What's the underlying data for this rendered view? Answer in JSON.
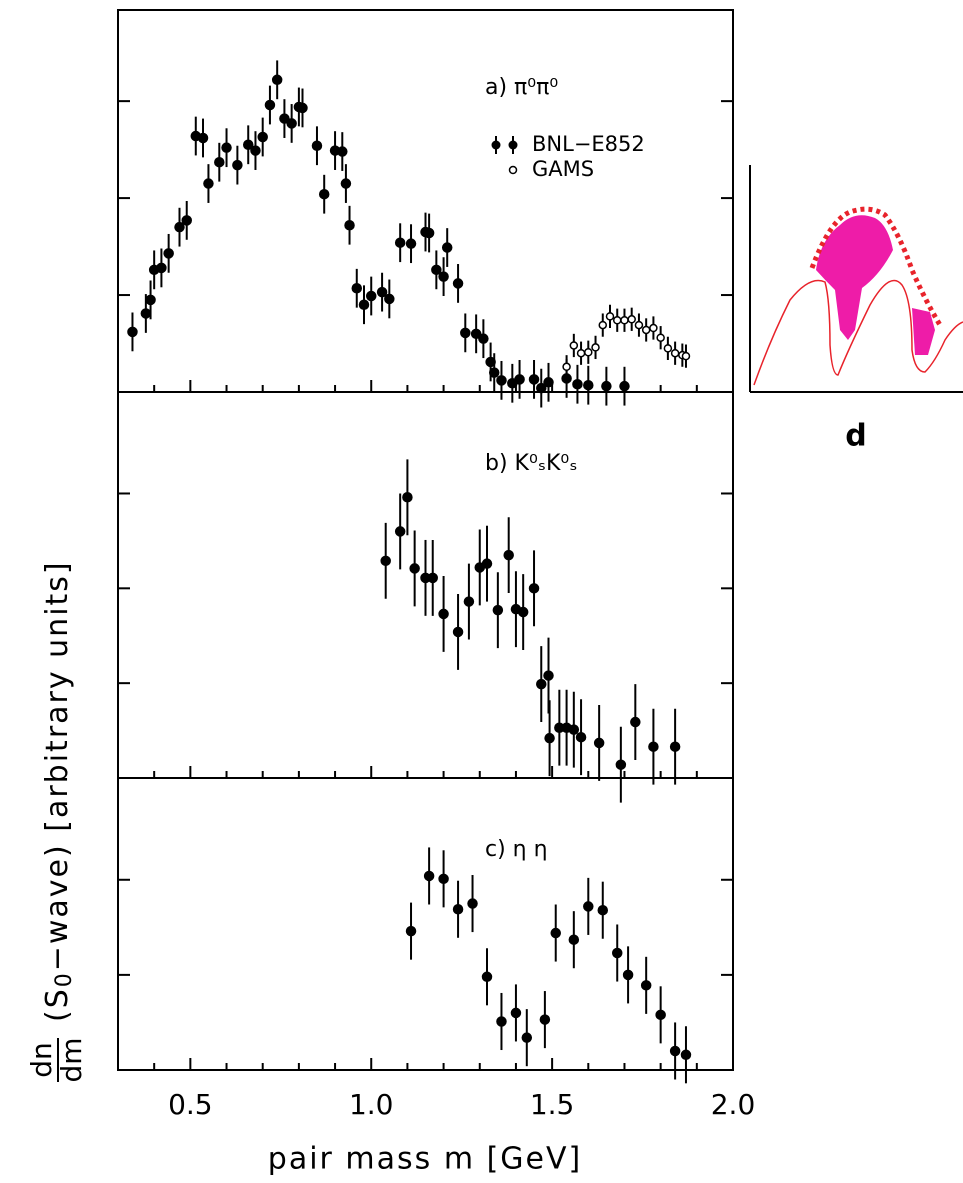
{
  "ylabel": {
    "num": "dn",
    "den": "dm",
    "open": "(S",
    "sub": "0",
    "rest": "−wave)  [arbitrary units]"
  },
  "xlabel": "pair mass  m  [GeV]",
  "inset": {
    "label": "d"
  },
  "chart_data": [
    {
      "type": "scatter",
      "title": "a)  π⁰π⁰",
      "xlim": [
        0.3,
        2.0
      ],
      "ylim": [
        0,
        3.94
      ],
      "yticks": [
        1,
        2,
        3
      ],
      "xticks": [
        0.5,
        {
          "value": 1,
          "label": "1.0"
        },
        1.5,
        {
          "value": 2,
          "label": "2.0"
        }
      ],
      "xminor": [
        0.4,
        0.6,
        0.7,
        0.8,
        0.9,
        1.1,
        1.2,
        1.3,
        1.4,
        1.6,
        1.7,
        1.8,
        1.9
      ],
      "series": [
        {
          "name": "BNL−E852",
          "color": "#000000",
          "marker": "filled",
          "error": 0.2,
          "x": [
            0.34,
            0.377,
            0.39,
            0.4,
            0.42,
            0.44,
            0.47,
            0.49,
            0.515,
            0.535,
            0.55,
            0.58,
            0.6,
            0.63,
            0.66,
            0.68,
            0.7,
            0.72,
            0.74,
            0.76,
            0.78,
            0.8,
            0.81,
            0.85,
            0.87,
            0.9,
            0.92,
            0.93,
            0.94,
            0.96,
            0.98,
            1.0,
            1.03,
            1.05,
            1.08,
            1.11,
            1.15,
            1.16,
            1.18,
            1.2,
            1.21,
            1.24,
            1.26,
            1.29,
            1.31,
            1.33,
            1.34,
            1.36,
            1.39,
            1.41,
            1.45,
            1.47,
            1.49,
            1.54,
            1.57,
            1.6,
            1.65,
            1.7
          ],
          "values": [
            0.62,
            0.81,
            0.95,
            1.26,
            1.28,
            1.43,
            1.7,
            1.77,
            2.64,
            2.62,
            2.15,
            2.37,
            2.52,
            2.34,
            2.55,
            2.49,
            2.63,
            2.96,
            3.22,
            2.82,
            2.77,
            2.94,
            2.93,
            2.54,
            2.04,
            2.49,
            2.48,
            2.15,
            1.72,
            1.07,
            0.9,
            0.99,
            1.03,
            0.96,
            1.54,
            1.53,
            1.65,
            1.64,
            1.26,
            1.19,
            1.49,
            1.12,
            0.61,
            0.6,
            0.55,
            0.31,
            0.2,
            0.12,
            0.09,
            0.13,
            0.13,
            0.04,
            0.1,
            0.14,
            0.08,
            0.07,
            0.06,
            0.06
          ]
        },
        {
          "name": "GAMS",
          "color": "#000000",
          "marker": "open",
          "error": 0.12,
          "x": [
            1.54,
            1.56,
            1.58,
            1.6,
            1.62,
            1.64,
            1.66,
            1.68,
            1.7,
            1.72,
            1.74,
            1.76,
            1.78,
            1.8,
            1.82,
            1.84,
            1.86,
            1.87
          ],
          "values": [
            0.26,
            0.48,
            0.4,
            0.41,
            0.46,
            0.69,
            0.78,
            0.74,
            0.74,
            0.75,
            0.69,
            0.64,
            0.66,
            0.56,
            0.45,
            0.4,
            0.38,
            0.37
          ]
        }
      ]
    },
    {
      "type": "scatter",
      "title": "b)  K⁰ₛK⁰ₛ",
      "xlim": [
        0.3,
        2.0
      ],
      "ylim": [
        0,
        4.07
      ],
      "yticks": [
        1,
        2,
        3
      ],
      "xticks": [
        0.5,
        {
          "value": 1,
          "label": "1.0"
        },
        1.5,
        {
          "value": 2,
          "label": "2.0"
        }
      ],
      "xminor": [
        0.4,
        0.6,
        0.7,
        0.8,
        0.9,
        1.1,
        1.2,
        1.3,
        1.4,
        1.6,
        1.7,
        1.8,
        1.9
      ],
      "series": [
        {
          "color": "#000000",
          "marker": "filled",
          "error": 0.4,
          "x": [
            1.04,
            1.08,
            1.1,
            1.12,
            1.15,
            1.17,
            1.2,
            1.24,
            1.27,
            1.3,
            1.32,
            1.35,
            1.38,
            1.4,
            1.42,
            1.45,
            1.47,
            1.49,
            1.493,
            1.52,
            1.54,
            1.56,
            1.58,
            1.63,
            1.69,
            1.73,
            1.78,
            1.84
          ],
          "values": [
            2.29,
            2.6,
            2.96,
            2.21,
            2.11,
            2.11,
            1.73,
            1.54,
            1.86,
            2.22,
            2.26,
            1.77,
            2.35,
            1.78,
            1.75,
            2.0,
            0.99,
            1.08,
            0.42,
            0.53,
            0.53,
            0.51,
            0.43,
            0.37,
            0.14,
            0.59,
            0.33,
            0.33
          ]
        }
      ]
    },
    {
      "type": "scatter",
      "title": "c)  η η",
      "xlim": [
        0.3,
        2.0
      ],
      "ylim": [
        0,
        3.07
      ],
      "yticks": [
        1,
        2
      ],
      "xticks": [
        0.5,
        {
          "value": 1,
          "label": "1.0"
        },
        1.5,
        {
          "value": 2,
          "label": "2.0"
        }
      ],
      "xminor": [
        0.4,
        0.6,
        0.7,
        0.8,
        0.9,
        1.1,
        1.2,
        1.3,
        1.4,
        1.6,
        1.7,
        1.8,
        1.9
      ],
      "series": [
        {
          "color": "#000000",
          "marker": "filled",
          "error": 0.3,
          "x": [
            1.11,
            1.16,
            1.2,
            1.24,
            1.28,
            1.32,
            1.36,
            1.4,
            1.43,
            1.48,
            1.51,
            1.56,
            1.6,
            1.64,
            1.68,
            1.71,
            1.76,
            1.8,
            1.84,
            1.87
          ],
          "values": [
            1.46,
            2.04,
            2.01,
            1.69,
            1.75,
            0.98,
            0.51,
            0.6,
            0.34,
            0.53,
            1.44,
            1.37,
            1.72,
            1.68,
            1.23,
            1.0,
            0.89,
            0.58,
            0.2,
            0.16
          ]
        }
      ]
    }
  ]
}
